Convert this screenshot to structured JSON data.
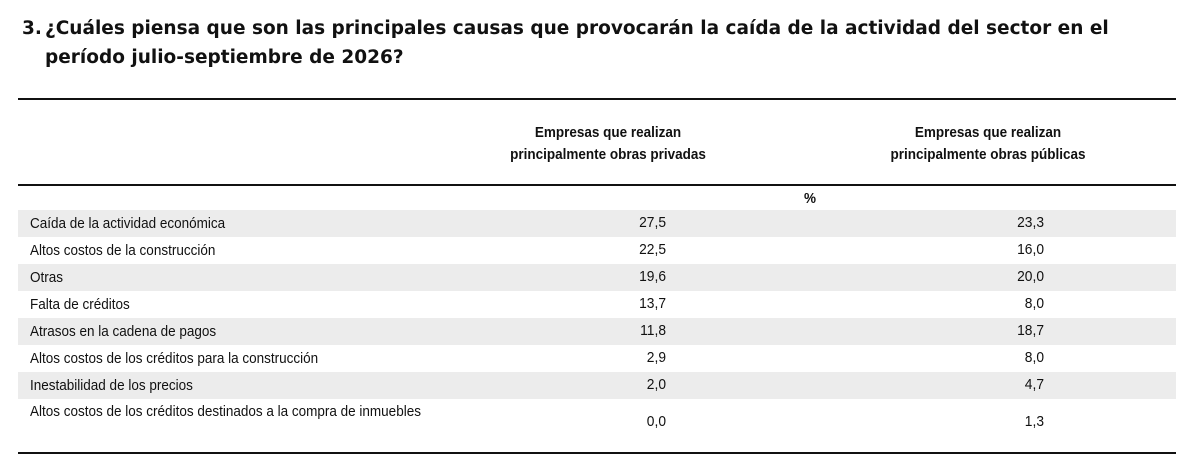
{
  "question": {
    "number": "3.",
    "line1": "¿Cuáles piensa que son las principales causas que provocarán la caída de la actividad del sector en el",
    "line2": "período julio-septiembre de 2026?"
  },
  "table": {
    "columns": [
      {
        "line1": "Empresas que realizan",
        "line2": "principalmente obras privadas"
      },
      {
        "line1": "Empresas que realizan",
        "line2": "principalmente obras públicas"
      }
    ],
    "unit": "%",
    "rows": [
      {
        "label": "Caída de la actividad económica",
        "privadas": "27,5",
        "publicas": "23,3"
      },
      {
        "label": "Altos costos de la construcción",
        "privadas": "22,5",
        "publicas": "16,0"
      },
      {
        "label": "Otras",
        "privadas": "19,6",
        "publicas": "20,0"
      },
      {
        "label": "Falta de créditos",
        "privadas": "13,7",
        "publicas": "8,0"
      },
      {
        "label": "Atrasos en la cadena de pagos",
        "privadas": "11,8",
        "publicas": "18,7"
      },
      {
        "label": "Altos costos de los créditos para la construcción",
        "privadas": "2,9",
        "publicas": "8,0"
      },
      {
        "label": "Inestabilidad de los precios",
        "privadas": "2,0",
        "publicas": "4,7"
      },
      {
        "label": "Altos costos de los créditos destinados a la compra de inmuebles",
        "privadas": "0,0",
        "publicas": "1,3"
      }
    ]
  }
}
